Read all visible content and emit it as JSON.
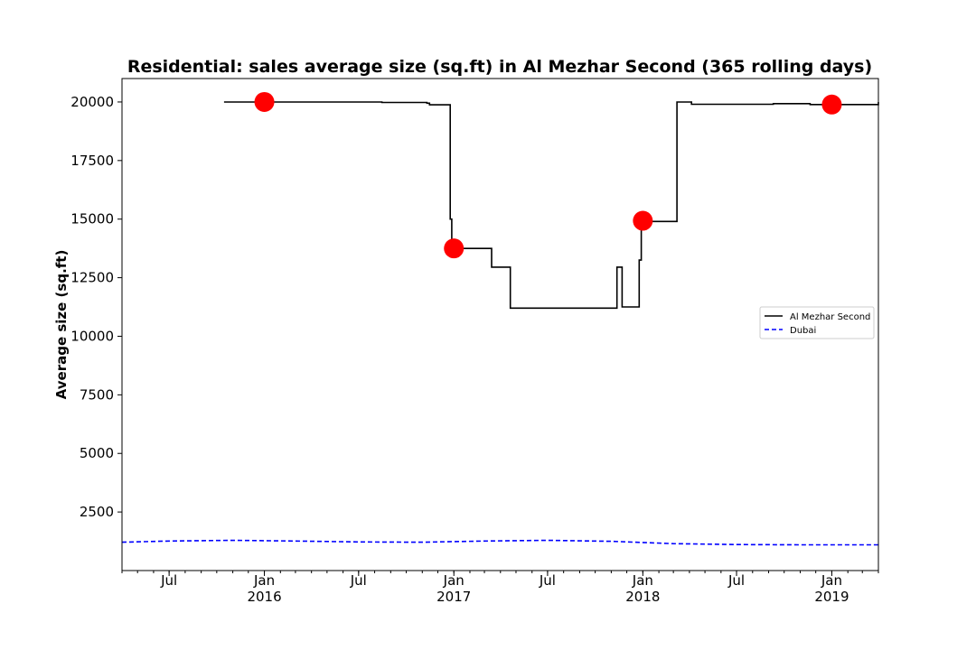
{
  "chart_data": {
    "type": "line",
    "title": "Residential: sales average size (sq.ft) in Al Mezhar Second (365 rolling days)",
    "xlabel": "",
    "ylabel": "Average size (sq.ft)",
    "xlim": [
      "2015-04-01",
      "2019-04-01"
    ],
    "ylim": [
      0,
      21000
    ],
    "yticks": [
      2500,
      5000,
      7500,
      10000,
      12500,
      15000,
      17500,
      20000
    ],
    "xticks": [
      {
        "date": "2015-07-01",
        "label": "Jul"
      },
      {
        "date": "2016-01-01",
        "label": "Jan",
        "year": "2016"
      },
      {
        "date": "2016-07-01",
        "label": "Jul"
      },
      {
        "date": "2017-01-01",
        "label": "Jan",
        "year": "2017"
      },
      {
        "date": "2017-07-01",
        "label": "Jul"
      },
      {
        "date": "2018-01-01",
        "label": "Jan",
        "year": "2018"
      },
      {
        "date": "2018-07-01",
        "label": "Jul"
      },
      {
        "date": "2019-01-01",
        "label": "Jan",
        "year": "2019"
      }
    ],
    "grid": false,
    "legend_position": "center-right",
    "series": [
      {
        "name": "Al Mezhar Second",
        "color": "#000000",
        "style": "solid",
        "step": true,
        "points": [
          [
            "2015-10-15",
            20000
          ],
          [
            "2016-08-15",
            19980
          ],
          [
            "2016-11-10",
            19950
          ],
          [
            "2016-11-15",
            19880
          ],
          [
            "2016-12-25",
            15000
          ],
          [
            "2016-12-28",
            13750
          ],
          [
            "2017-03-15",
            12950
          ],
          [
            "2017-04-20",
            11200
          ],
          [
            "2017-11-12",
            12950
          ],
          [
            "2017-11-22",
            11250
          ],
          [
            "2017-12-25",
            13250
          ],
          [
            "2017-12-29",
            14900
          ],
          [
            "2018-03-08",
            20000
          ],
          [
            "2018-04-05",
            19900
          ],
          [
            "2018-09-10",
            19930
          ],
          [
            "2018-11-20",
            19890
          ],
          [
            "2019-04-01",
            20000
          ]
        ],
        "end": "2019-04-01"
      },
      {
        "name": "Dubai",
        "color": "#0000ff",
        "style": "dashed",
        "step": false,
        "points": [
          [
            "2015-04-01",
            1210
          ],
          [
            "2015-07-01",
            1260
          ],
          [
            "2015-11-01",
            1290
          ],
          [
            "2016-03-01",
            1260
          ],
          [
            "2016-07-01",
            1220
          ],
          [
            "2016-11-01",
            1210
          ],
          [
            "2017-03-01",
            1260
          ],
          [
            "2017-07-01",
            1290
          ],
          [
            "2017-11-01",
            1250
          ],
          [
            "2018-03-01",
            1150
          ],
          [
            "2018-07-01",
            1110
          ],
          [
            "2018-11-01",
            1100
          ],
          [
            "2019-04-01",
            1100
          ]
        ]
      }
    ],
    "markers": [
      {
        "date": "2016-01-01",
        "value": 20000,
        "color": "#ff0000"
      },
      {
        "date": "2017-01-01",
        "value": 13750,
        "color": "#ff0000"
      },
      {
        "date": "2018-01-01",
        "value": 14930,
        "color": "#ff0000"
      },
      {
        "date": "2019-01-01",
        "value": 19890,
        "color": "#ff0000"
      }
    ]
  }
}
